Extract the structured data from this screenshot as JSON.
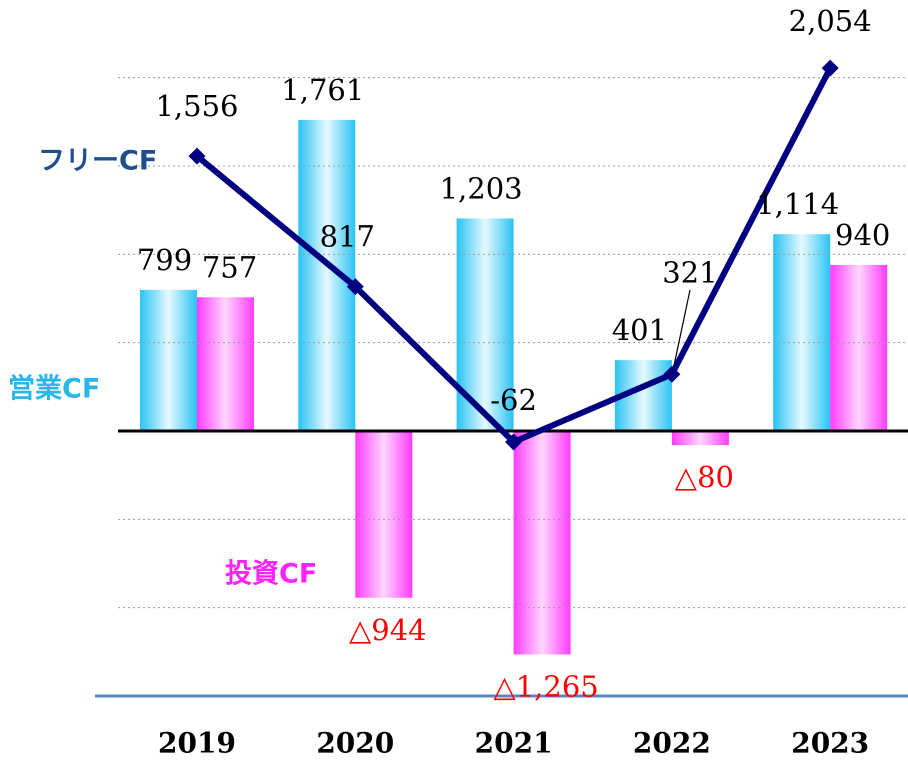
{
  "chart_data": {
    "type": "bar_line",
    "categories": [
      "2019",
      "2020",
      "2021",
      "2022",
      "2023"
    ],
    "series": [
      {
        "name": "営業CF",
        "type": "bar",
        "color": "#29c3f3",
        "values": [
          799,
          1761,
          1203,
          401,
          1114
        ],
        "value_labels": [
          "799",
          "1,761",
          "1,203",
          "401",
          "1,114"
        ]
      },
      {
        "name": "投資CF",
        "type": "bar",
        "color": "#ff3cff",
        "values": [
          757,
          -944,
          -1265,
          -80,
          940
        ],
        "value_labels": [
          "757",
          "△944",
          "△1,265",
          "△80",
          "940"
        ]
      },
      {
        "name": "フリーCF",
        "type": "line",
        "color": "#000080",
        "values": [
          1556,
          817,
          -62,
          321,
          2054
        ],
        "value_labels": [
          "1,556",
          "817",
          "-62",
          "321",
          "2,054"
        ]
      }
    ],
    "ylim": [
      -1500,
      2100
    ],
    "yticks": [
      -1500,
      -1000,
      -500,
      0,
      500,
      1000,
      1500,
      2000
    ],
    "grid": true
  }
}
